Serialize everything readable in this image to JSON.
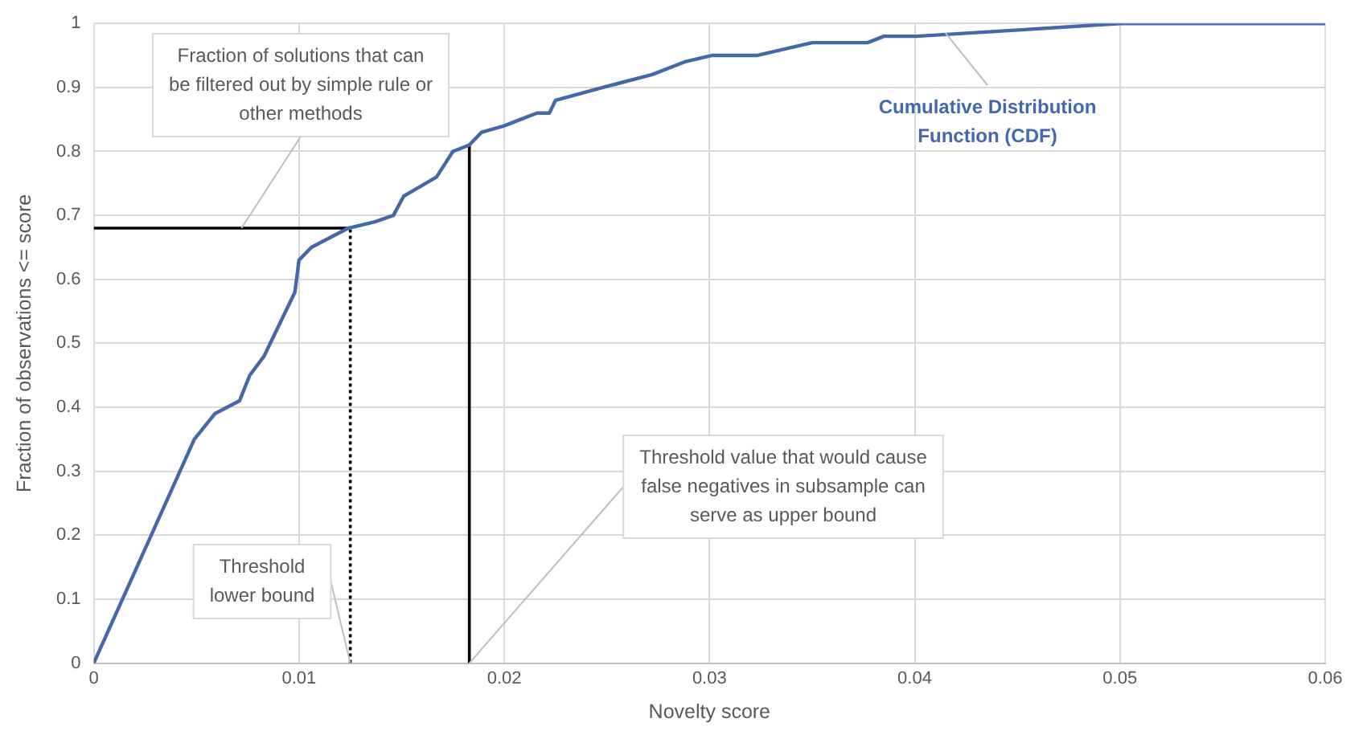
{
  "chart_data": {
    "type": "line",
    "xlabel": "Novelty score",
    "ylabel": "Fraction of observations <= score",
    "xlim": [
      0,
      0.06
    ],
    "xticks": [
      0,
      0.01,
      0.02,
      0.03,
      0.04,
      0.05,
      0.06
    ],
    "ylim": [
      0,
      1
    ],
    "yticks": [
      0,
      0.1,
      0.2,
      0.3,
      0.4,
      0.5,
      0.6,
      0.7,
      0.8,
      0.9,
      1
    ],
    "grid": true,
    "legend": false,
    "marker": "none",
    "series": [
      {
        "color": "#4468ac",
        "x": [
          0,
          0.0028,
          0.0049,
          0.0059,
          0.0071,
          0.0076,
          0.0083,
          0.0098,
          0.01,
          0.0106,
          0.0124,
          0.0137,
          0.0146,
          0.0151,
          0.0167,
          0.0175,
          0.0183,
          0.0189,
          0.02,
          0.0208,
          0.0216,
          0.0222,
          0.0225,
          0.0248,
          0.0272,
          0.0288,
          0.0301,
          0.0323,
          0.035,
          0.0377,
          0.0385,
          0.0401,
          0.0452,
          0.05,
          0.06
        ],
        "values": [
          0,
          0.2,
          0.35,
          0.39,
          0.41,
          0.45,
          0.48,
          0.58,
          0.63,
          0.65,
          0.68,
          0.69,
          0.7,
          0.73,
          0.76,
          0.8,
          0.81,
          0.83,
          0.84,
          0.85,
          0.86,
          0.86,
          0.88,
          0.9,
          0.92,
          0.94,
          0.95,
          0.95,
          0.97,
          0.97,
          0.98,
          0.98,
          0.99,
          1,
          1
        ]
      },
      {
        "type": "line",
        "color": "#000000",
        "line_style": "solid",
        "x": [
          0,
          0.0125
        ],
        "values": [
          0.68,
          0.68
        ]
      },
      {
        "type": "line",
        "color": "#000000",
        "line_style": "dotted",
        "x": [
          0.0125,
          0.0125
        ],
        "values": [
          0,
          0.68
        ]
      },
      {
        "type": "line",
        "color": "#000000",
        "line_style": "solid",
        "x": [
          0.0183,
          0.0183
        ],
        "values": [
          0,
          0.81
        ]
      }
    ],
    "annotations": [
      {
        "text": "Fraction of solutions that can be filtered out by simple rule or other methods",
        "x": 0.0072,
        "y": 0.68
      },
      {
        "text": "Threshold lower bound",
        "x": 0.0125,
        "y": 0
      },
      {
        "text": "Threshold value that would cause false negatives in subsample can serve as upper bound",
        "x": 0.0183,
        "y": 0
      },
      {
        "text": "Cumulative Distribution Function (CDF)",
        "x": 0.0415,
        "y": 0.985
      }
    ]
  }
}
